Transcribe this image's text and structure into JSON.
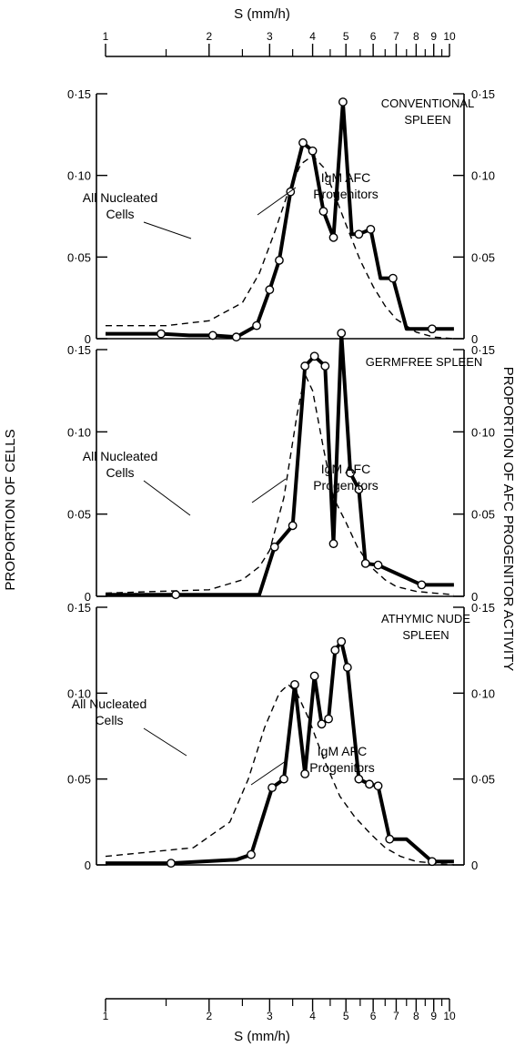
{
  "figure": {
    "x_axis_label": "S (mm/h)",
    "y_axis_left_label": "PROPORTION OF CELLS",
    "y_axis_right_label": "PROPORTION OF AFC PROGENITOR ACTIVITY",
    "x_tick_labels": [
      "1",
      "2",
      "3",
      "4",
      "5",
      "6",
      "7",
      "8",
      "9",
      "10"
    ],
    "y_tick_labels": [
      "0",
      "0·05",
      "0·10",
      "0·15"
    ]
  },
  "chart_data": [
    {
      "type": "line",
      "title": "CONVENTIONAL SPLEEN",
      "xlabel": "S (mm/h)",
      "ylabel": "PROPORTION OF CELLS",
      "xscale": "log",
      "xlim": [
        1,
        10
      ],
      "ylim": [
        0,
        0.15
      ],
      "series": [
        {
          "name": "All Nucleated Cells",
          "style": "dashed",
          "x": [
            1,
            1.5,
            2,
            2.5,
            2.8,
            3.1,
            3.4,
            3.7,
            4.0,
            4.3,
            4.6,
            5.0,
            5.5,
            6.0,
            6.5,
            7.0,
            8.0,
            9.0,
            10.3
          ],
          "y": [
            0.008,
            0.008,
            0.011,
            0.022,
            0.04,
            0.065,
            0.09,
            0.107,
            0.112,
            0.105,
            0.09,
            0.07,
            0.048,
            0.032,
            0.02,
            0.012,
            0.004,
            0.001,
            0.0
          ]
        },
        {
          "name": "IgM AFC Progenitors",
          "style": "solid",
          "markers": true,
          "x": [
            1,
            1.45,
            1.75,
            2.05,
            2.4,
            2.75,
            3.0,
            3.2,
            3.45,
            3.75,
            4.0,
            4.3,
            4.6,
            4.9,
            5.2,
            5.45,
            5.9,
            6.3,
            6.85,
            7.5,
            8.9,
            10.3
          ],
          "y": [
            0.003,
            0.003,
            0.002,
            0.002,
            0.001,
            0.008,
            0.03,
            0.048,
            0.09,
            0.12,
            0.115,
            0.078,
            0.062,
            0.145,
            0.064,
            0.064,
            0.067,
            0.037,
            0.037,
            0.006,
            0.006,
            0.006
          ],
          "marker_indices": [
            1,
            3,
            4,
            5,
            6,
            7,
            8,
            9,
            10,
            11,
            12,
            13,
            15,
            16,
            18,
            20
          ]
        }
      ]
    },
    {
      "type": "line",
      "title": "GERMFREE SPLEEN",
      "xlabel": "S (mm/h)",
      "ylabel": "PROPORTION OF CELLS",
      "xscale": "log",
      "xlim": [
        1,
        10
      ],
      "ylim": [
        0,
        0.15
      ],
      "series": [
        {
          "name": "All Nucleated Cells",
          "style": "dashed",
          "x": [
            1,
            2,
            2.5,
            2.8,
            3.0,
            3.3,
            3.6,
            3.8,
            4.0,
            4.3,
            4.6,
            5.0,
            5.4,
            5.9,
            6.5,
            7.0,
            8.0,
            9.0,
            10.3
          ],
          "y": [
            0.002,
            0.004,
            0.01,
            0.018,
            0.028,
            0.06,
            0.11,
            0.135,
            0.125,
            0.09,
            0.06,
            0.045,
            0.03,
            0.018,
            0.01,
            0.006,
            0.003,
            0.002,
            0.001
          ]
        },
        {
          "name": "IgM AFC Progenitors",
          "style": "solid",
          "markers": true,
          "x": [
            1,
            1.6,
            2.8,
            3.1,
            3.5,
            3.8,
            4.05,
            4.35,
            4.6,
            4.85,
            5.15,
            5.45,
            5.7,
            6.2,
            8.3,
            10.3
          ],
          "y": [
            0.001,
            0.001,
            0.001,
            0.03,
            0.043,
            0.14,
            0.146,
            0.14,
            0.032,
            0.16,
            0.075,
            0.065,
            0.02,
            0.019,
            0.007,
            0.007
          ],
          "marker_indices": [
            1,
            3,
            4,
            5,
            6,
            7,
            8,
            9,
            10,
            11,
            12,
            13,
            14
          ]
        }
      ]
    },
    {
      "type": "line",
      "title": "ATHYMIC NUDE SPLEEN",
      "xlabel": "S (mm/h)",
      "ylabel": "PROPORTION OF CELLS",
      "xscale": "log",
      "xlim": [
        1,
        10
      ],
      "ylim": [
        0,
        0.15
      ],
      "series": [
        {
          "name": "All Nucleated Cells",
          "style": "dashed",
          "x": [
            1,
            1.8,
            2.3,
            2.6,
            2.9,
            3.2,
            3.4,
            3.6,
            3.9,
            4.3,
            4.8,
            5.3,
            5.9,
            6.5,
            7.2,
            8.0,
            9.0,
            10.3
          ],
          "y": [
            0.005,
            0.01,
            0.025,
            0.05,
            0.08,
            0.1,
            0.105,
            0.1,
            0.085,
            0.062,
            0.04,
            0.028,
            0.018,
            0.01,
            0.005,
            0.002,
            0.001,
            0.0
          ]
        },
        {
          "name": "IgM AFC Progenitors",
          "style": "solid",
          "markers": true,
          "x": [
            1,
            1.55,
            2.4,
            2.65,
            3.05,
            3.3,
            3.55,
            3.8,
            4.05,
            4.25,
            4.45,
            4.65,
            4.85,
            5.05,
            5.45,
            5.85,
            6.2,
            6.7,
            7.5,
            8.9,
            10.3
          ],
          "y": [
            0.001,
            0.001,
            0.003,
            0.006,
            0.045,
            0.05,
            0.105,
            0.053,
            0.11,
            0.082,
            0.085,
            0.125,
            0.13,
            0.115,
            0.05,
            0.047,
            0.046,
            0.015,
            0.015,
            0.002,
            0.002
          ],
          "marker_indices": [
            1,
            3,
            4,
            5,
            6,
            7,
            8,
            9,
            10,
            11,
            12,
            13,
            14,
            15,
            16,
            17,
            19
          ]
        }
      ]
    }
  ]
}
